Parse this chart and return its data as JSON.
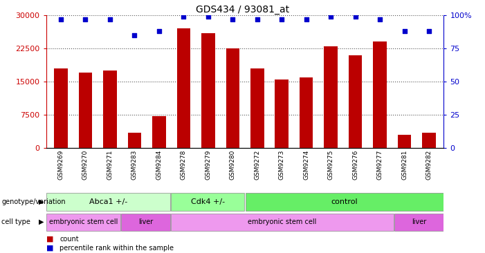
{
  "title": "GDS434 / 93081_at",
  "samples": [
    "GSM9269",
    "GSM9270",
    "GSM9271",
    "GSM9283",
    "GSM9284",
    "GSM9278",
    "GSM9279",
    "GSM9280",
    "GSM9272",
    "GSM9273",
    "GSM9274",
    "GSM9275",
    "GSM9276",
    "GSM9277",
    "GSM9281",
    "GSM9282"
  ],
  "counts": [
    18000,
    17000,
    17500,
    3500,
    7200,
    27000,
    26000,
    22500,
    18000,
    15500,
    16000,
    23000,
    21000,
    24000,
    3000,
    3500
  ],
  "percentiles": [
    97,
    97,
    97,
    85,
    88,
    99,
    99,
    97,
    97,
    97,
    97,
    99,
    99,
    97,
    88,
    88
  ],
  "bar_color": "#bb0000",
  "dot_color": "#0000cc",
  "ylim_left": [
    0,
    30000
  ],
  "ylim_right": [
    0,
    100
  ],
  "yticks_left": [
    0,
    7500,
    15000,
    22500,
    30000
  ],
  "yticks_right": [
    0,
    25,
    50,
    75,
    100
  ],
  "genotype_groups": [
    {
      "label": "Abca1 +/-",
      "start": 0,
      "end": 5,
      "color": "#ccffcc"
    },
    {
      "label": "Cdk4 +/-",
      "start": 5,
      "end": 8,
      "color": "#99ff99"
    },
    {
      "label": "control",
      "start": 8,
      "end": 16,
      "color": "#66ee66"
    }
  ],
  "celltype_groups": [
    {
      "label": "embryonic stem cell",
      "start": 0,
      "end": 3,
      "color": "#ee99ee"
    },
    {
      "label": "liver",
      "start": 3,
      "end": 5,
      "color": "#dd66dd"
    },
    {
      "label": "embryonic stem cell",
      "start": 5,
      "end": 14,
      "color": "#ee99ee"
    },
    {
      "label": "liver",
      "start": 14,
      "end": 16,
      "color": "#dd66dd"
    }
  ],
  "legend_count_color": "#bb0000",
  "legend_dot_color": "#0000cc",
  "grid_color": "#555555",
  "tick_label_color_left": "#cc0000",
  "tick_label_color_right": "#0000cc",
  "bar_width": 0.55,
  "xticklabel_bg": "#cccccc",
  "spine_color": "#000000"
}
